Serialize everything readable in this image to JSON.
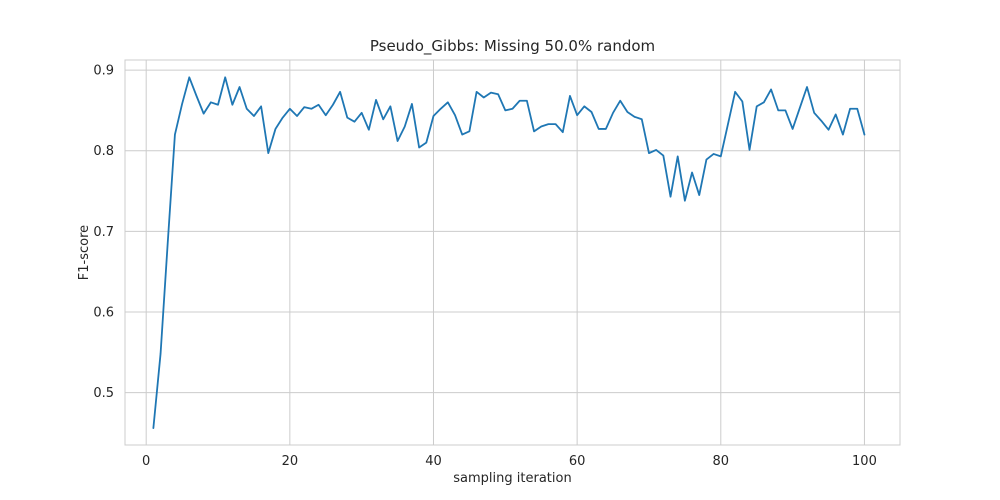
{
  "chart_data": {
    "type": "line",
    "title": "Pseudo_Gibbs: Missing 50.0% random",
    "xlabel": "sampling iteration",
    "ylabel": "F1-score",
    "xlim": [
      -2.95,
      104.95
    ],
    "ylim": [
      0.435,
      0.9125
    ],
    "grid": true,
    "x_ticks": [
      0,
      20,
      40,
      60,
      80,
      100
    ],
    "x_tick_labels": [
      "0",
      "20",
      "40",
      "60",
      "80",
      "100"
    ],
    "y_ticks": [
      0.5,
      0.6,
      0.7,
      0.8,
      0.9
    ],
    "y_tick_labels": [
      "0.5",
      "0.6",
      "0.7",
      "0.8",
      "0.9"
    ],
    "colors": {
      "line": "#1f77b4",
      "grid": "#cccccc",
      "text": "#262626"
    },
    "series": [
      {
        "x": [
          1,
          2,
          3,
          4,
          5,
          6,
          7,
          8,
          9,
          10,
          11,
          12,
          13,
          14,
          15,
          16,
          17,
          18,
          19,
          20,
          21,
          22,
          23,
          24,
          25,
          26,
          27,
          28,
          29,
          30,
          31,
          32,
          33,
          34,
          35,
          36,
          37,
          38,
          39,
          40,
          41,
          42,
          43,
          44,
          45,
          46,
          47,
          48,
          49,
          50,
          51,
          52,
          53,
          54,
          55,
          56,
          57,
          58,
          59,
          60,
          61,
          62,
          63,
          64,
          65,
          66,
          67,
          68,
          69,
          70,
          71,
          72,
          73,
          74,
          75,
          76,
          77,
          78,
          79,
          80,
          81,
          82,
          83,
          84,
          85,
          86,
          87,
          88,
          89,
          90,
          91,
          92,
          93,
          94,
          95,
          96,
          97,
          98,
          99,
          100
        ],
        "values": [
          0.456,
          0.548,
          0.686,
          0.82,
          0.858,
          0.891,
          0.868,
          0.846,
          0.86,
          0.857,
          0.891,
          0.857,
          0.879,
          0.852,
          0.843,
          0.855,
          0.797,
          0.827,
          0.841,
          0.852,
          0.843,
          0.854,
          0.852,
          0.857,
          0.844,
          0.857,
          0.873,
          0.841,
          0.836,
          0.847,
          0.826,
          0.863,
          0.839,
          0.855,
          0.812,
          0.83,
          0.858,
          0.804,
          0.81,
          0.843,
          0.852,
          0.86,
          0.844,
          0.82,
          0.824,
          0.873,
          0.866,
          0.872,
          0.87,
          0.85,
          0.852,
          0.862,
          0.862,
          0.824,
          0.83,
          0.833,
          0.833,
          0.823,
          0.868,
          0.844,
          0.855,
          0.848,
          0.827,
          0.827,
          0.847,
          0.862,
          0.848,
          0.842,
          0.839,
          0.797,
          0.801,
          0.794,
          0.743,
          0.793,
          0.738,
          0.773,
          0.745,
          0.789,
          0.796,
          0.793,
          0.833,
          0.873,
          0.861,
          0.801,
          0.855,
          0.86,
          0.876,
          0.85,
          0.85,
          0.827,
          0.853,
          0.879,
          0.847,
          0.837,
          0.826,
          0.845,
          0.82,
          0.852,
          0.852,
          0.82
        ]
      }
    ]
  }
}
